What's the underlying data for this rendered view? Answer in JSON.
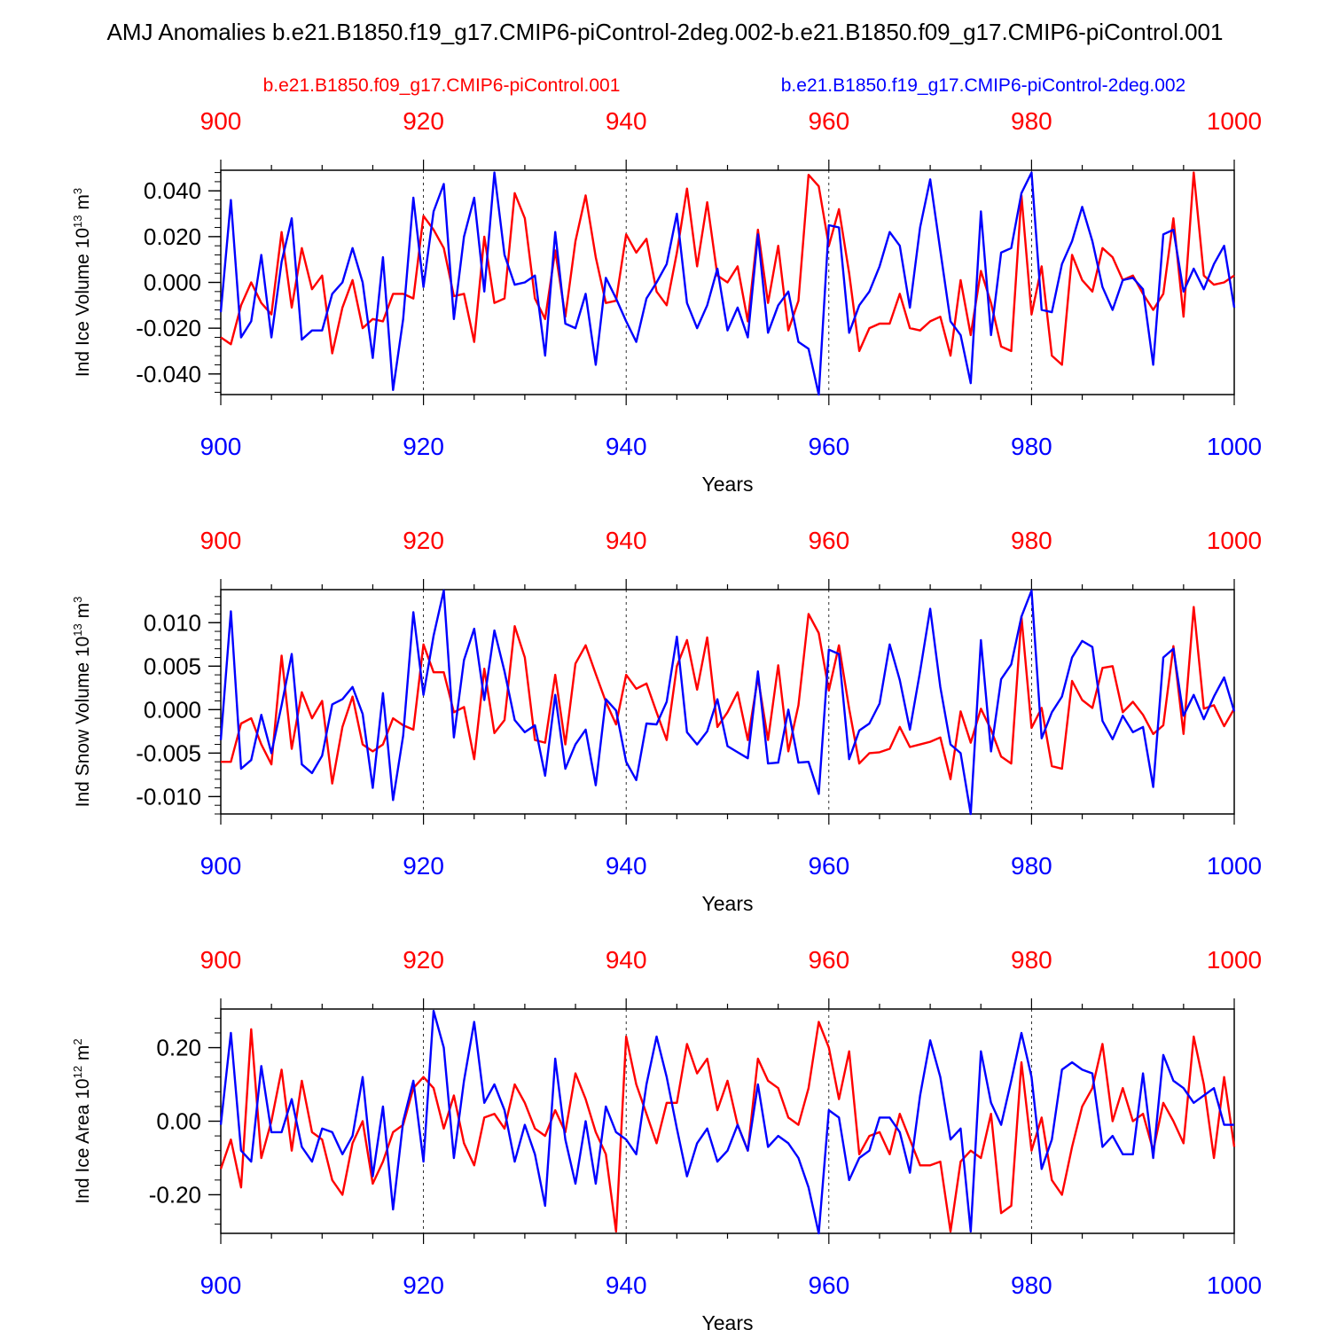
{
  "title": "AMJ Anomalies b.e21.B1850.f19_g17.CMIP6-piControl-2deg.002-b.e21.B1850.f09_g17.CMIP6-piControl.001",
  "legend": {
    "red_label": "b.e21.B1850.f09_g17.CMIP6-piControl.001",
    "blue_label": "b.e21.B1850.f19_g17.CMIP6-piControl-2deg.002"
  },
  "colors": {
    "red": "#ff0000",
    "blue": "#0000ff",
    "axis": "#000000"
  },
  "chart_data": [
    {
      "type": "line",
      "ylabel": "Ind Ice Volume 10",
      "ylabel_exp": "13",
      "ylabel_unit": " m",
      "ylabel_unit_exp": "3",
      "xlabel": "Years",
      "xlim": [
        900,
        1000
      ],
      "ylim": [
        -0.049,
        0.049
      ],
      "x_ticks": [
        "900",
        "920",
        "940",
        "960",
        "980",
        "1000"
      ],
      "y_tick_values": [
        -0.04,
        -0.02,
        0.0,
        0.02,
        0.04
      ],
      "y_tick_labels": [
        "-0.040",
        "-0.020",
        "0.000",
        "0.020",
        "0.040"
      ],
      "y_minor_step": 0.004,
      "x_start": 900,
      "series": [
        {
          "name": "b.e21.B1850.f09_g17.CMIP6-piControl.001",
          "color": "red",
          "values": [
            -0.024,
            -0.027,
            -0.01,
            0.0,
            -0.009,
            -0.014,
            0.022,
            -0.011,
            0.015,
            -0.003,
            0.003,
            -0.031,
            -0.011,
            0.001,
            -0.02,
            -0.016,
            -0.017,
            -0.005,
            -0.005,
            -0.007,
            0.029,
            0.023,
            0.015,
            -0.006,
            -0.005,
            -0.026,
            0.02,
            -0.009,
            -0.007,
            0.039,
            0.028,
            -0.007,
            -0.016,
            0.014,
            -0.015,
            0.018,
            0.038,
            0.011,
            -0.009,
            -0.008,
            0.021,
            0.013,
            0.019,
            -0.004,
            -0.01,
            0.013,
            0.041,
            0.007,
            0.035,
            0.003,
            0.0,
            0.007,
            -0.017,
            0.023,
            -0.009,
            0.016,
            -0.021,
            -0.008,
            0.047,
            0.042,
            0.016,
            0.032,
            0.004,
            -0.03,
            -0.02,
            -0.018,
            -0.018,
            -0.005,
            -0.02,
            -0.021,
            -0.017,
            -0.015,
            -0.032,
            0.001,
            -0.023,
            0.005,
            -0.009,
            -0.028,
            -0.03,
            0.038,
            -0.014,
            0.007,
            -0.032,
            -0.036,
            0.012,
            0.001,
            -0.004,
            0.015,
            0.011,
            0.001,
            0.003,
            -0.005,
            -0.012,
            -0.005,
            0.028,
            -0.015,
            0.048,
            0.003,
            -0.001,
            0.0,
            0.003
          ]
        },
        {
          "name": "b.e21.B1850.f19_g17.CMIP6-piControl-2deg.002",
          "color": "blue",
          "values": [
            -0.013,
            0.036,
            -0.024,
            -0.017,
            0.012,
            -0.024,
            0.009,
            0.028,
            -0.025,
            -0.021,
            -0.021,
            -0.005,
            0.0,
            0.015,
            0.0,
            -0.033,
            0.011,
            -0.047,
            -0.016,
            0.037,
            -0.002,
            0.031,
            0.043,
            -0.016,
            0.02,
            0.037,
            -0.004,
            0.048,
            0.012,
            -0.001,
            0.0,
            0.003,
            -0.032,
            0.022,
            -0.018,
            -0.02,
            -0.005,
            -0.036,
            0.002,
            -0.007,
            -0.017,
            -0.026,
            -0.007,
            0.0,
            0.008,
            0.03,
            -0.009,
            -0.02,
            -0.01,
            0.006,
            -0.021,
            -0.011,
            -0.024,
            0.021,
            -0.022,
            -0.01,
            -0.004,
            -0.026,
            -0.029,
            -0.049,
            0.025,
            0.024,
            -0.022,
            -0.01,
            -0.004,
            0.007,
            0.022,
            0.016,
            -0.011,
            0.024,
            0.045,
            0.014,
            -0.017,
            -0.023,
            -0.044,
            0.031,
            -0.023,
            0.013,
            0.015,
            0.039,
            0.048,
            -0.012,
            -0.013,
            0.008,
            0.018,
            0.033,
            0.018,
            -0.002,
            -0.012,
            0.001,
            0.002,
            -0.003,
            -0.036,
            0.021,
            0.023,
            -0.004,
            0.006,
            -0.003,
            0.008,
            0.016,
            -0.011
          ]
        }
      ]
    },
    {
      "type": "line",
      "ylabel": "Ind Snow Volume 10",
      "ylabel_exp": "13",
      "ylabel_unit": " m",
      "ylabel_unit_exp": "3",
      "xlabel": "Years",
      "xlim": [
        900,
        1000
      ],
      "ylim": [
        -0.012,
        0.0138
      ],
      "x_ticks": [
        "900",
        "920",
        "940",
        "960",
        "980",
        "1000"
      ],
      "y_tick_values": [
        -0.01,
        -0.005,
        0.0,
        0.005,
        0.01
      ],
      "y_tick_labels": [
        "-0.010",
        "-0.005",
        "0.000",
        "0.005",
        "0.010"
      ],
      "y_minor_step": 0.001,
      "x_start": 900,
      "series": [
        {
          "name": "b.e21.B1850.f09_g17.CMIP6-piControl.001",
          "color": "red",
          "values": [
            -0.006,
            -0.006,
            -0.0016,
            -0.001,
            -0.004,
            -0.0063,
            0.0062,
            -0.0045,
            0.002,
            -0.001,
            0.001,
            -0.0085,
            -0.002,
            0.0015,
            -0.004,
            -0.0048,
            -0.004,
            -0.001,
            -0.0018,
            -0.0023,
            0.0075,
            0.0043,
            0.0043,
            -0.0003,
            0.0003,
            -0.0057,
            0.0047,
            -0.0027,
            -0.0012,
            0.0096,
            0.006,
            -0.0035,
            -0.0038,
            0.004,
            -0.004,
            0.0053,
            0.0074,
            0.0041,
            0.0009,
            -0.0017,
            0.004,
            0.0024,
            0.003,
            -0.0003,
            -0.0035,
            0.005,
            0.008,
            0.0023,
            0.0083,
            -0.002,
            -0.0003,
            0.002,
            -0.0035,
            0.0037,
            -0.0035,
            0.0051,
            -0.0048,
            0.0005,
            0.011,
            0.0088,
            0.0022,
            0.0074,
            0.0001,
            -0.0062,
            -0.005,
            -0.0049,
            -0.0045,
            -0.002,
            -0.0043,
            -0.004,
            -0.0037,
            -0.0032,
            -0.008,
            -0.0002,
            -0.0038,
            0.0001,
            -0.0023,
            -0.0054,
            -0.0062,
            0.0107,
            -0.0021,
            0.0002,
            -0.0065,
            -0.0068,
            0.0033,
            0.0011,
            0.0002,
            0.0048,
            0.005,
            -0.0003,
            0.0009,
            -0.0006,
            -0.0028,
            -0.0018,
            0.0073,
            -0.0028,
            0.0118,
            0.0001,
            0.0005,
            -0.0019,
            0.0001
          ]
        },
        {
          "name": "b.e21.B1850.f19_g17.CMIP6-piControl-2deg.002",
          "color": "blue",
          "values": [
            -0.0035,
            0.0113,
            -0.0068,
            -0.0058,
            -0.0006,
            -0.005,
            0.0005,
            0.0064,
            -0.0063,
            -0.0073,
            -0.0053,
            0.0006,
            0.0012,
            0.0026,
            -0.0005,
            -0.009,
            0.0019,
            -0.0104,
            -0.003,
            0.0112,
            0.0017,
            0.0085,
            0.0137,
            -0.0032,
            0.0057,
            0.0093,
            0.0011,
            0.0091,
            0.0044,
            -0.0012,
            -0.0026,
            -0.0018,
            -0.0076,
            0.0017,
            -0.0068,
            -0.004,
            -0.0023,
            -0.0087,
            0.0012,
            -0.0001,
            -0.006,
            -0.0081,
            -0.0016,
            -0.0017,
            0.0009,
            0.0084,
            -0.0026,
            -0.004,
            -0.0025,
            0.0012,
            -0.0042,
            -0.0049,
            -0.0056,
            0.0044,
            -0.0062,
            -0.0061,
            0.0,
            -0.0061,
            -0.006,
            -0.0097,
            0.0069,
            0.0064,
            -0.0057,
            -0.0024,
            -0.0016,
            0.0007,
            0.0075,
            0.0034,
            -0.0023,
            0.0044,
            0.0116,
            0.0026,
            -0.004,
            -0.005,
            -0.0122,
            0.008,
            -0.0048,
            0.0035,
            0.0052,
            0.0107,
            0.0137,
            -0.0033,
            -0.0003,
            0.0015,
            0.006,
            0.0079,
            0.0072,
            -0.0013,
            -0.0034,
            -0.0007,
            -0.0026,
            -0.002,
            -0.0089,
            0.006,
            0.007,
            -0.0007,
            0.0017,
            -0.0011,
            0.0015,
            0.0037,
            -0.0002
          ]
        }
      ]
    },
    {
      "type": "line",
      "ylabel": "Ind Ice Area 10",
      "ylabel_exp": "12",
      "ylabel_unit": " m",
      "ylabel_unit_exp": "2",
      "xlabel": "Years",
      "xlim": [
        900,
        1000
      ],
      "ylim": [
        -0.305,
        0.305
      ],
      "x_ticks": [
        "900",
        "920",
        "940",
        "960",
        "980",
        "1000"
      ],
      "y_tick_values": [
        -0.2,
        0.0,
        0.2
      ],
      "y_tick_labels": [
        "-0.20",
        "0.00",
        "0.20"
      ],
      "y_minor_step": 0.04,
      "x_start": 900,
      "series": [
        {
          "name": "b.e21.B1850.f09_g17.CMIP6-piControl.001",
          "color": "red",
          "values": [
            -0.13,
            -0.05,
            -0.18,
            0.25,
            -0.1,
            0.0,
            0.14,
            -0.08,
            0.11,
            -0.03,
            -0.05,
            -0.16,
            -0.2,
            -0.06,
            0.0,
            -0.17,
            -0.11,
            -0.03,
            -0.01,
            0.09,
            0.12,
            0.09,
            -0.02,
            0.07,
            -0.06,
            -0.12,
            0.01,
            0.02,
            -0.02,
            0.1,
            0.05,
            -0.02,
            -0.04,
            0.03,
            -0.03,
            0.13,
            0.06,
            -0.03,
            -0.09,
            -0.3,
            0.23,
            0.1,
            0.02,
            -0.06,
            0.05,
            0.05,
            0.21,
            0.13,
            0.17,
            0.03,
            0.11,
            -0.01,
            -0.08,
            0.17,
            0.11,
            0.09,
            0.01,
            -0.01,
            0.09,
            0.27,
            0.2,
            0.06,
            0.19,
            -0.09,
            -0.04,
            -0.03,
            -0.09,
            0.02,
            -0.05,
            -0.12,
            -0.12,
            -0.11,
            -0.3,
            -0.11,
            -0.08,
            -0.1,
            0.02,
            -0.25,
            -0.23,
            0.16,
            -0.08,
            0.01,
            -0.16,
            -0.2,
            -0.07,
            0.04,
            0.09,
            0.21,
            0.0,
            0.09,
            0.0,
            0.02,
            -0.08,
            0.05,
            0.0,
            -0.06,
            0.23,
            0.1,
            -0.1,
            0.12,
            -0.07
          ]
        },
        {
          "name": "b.e21.B1850.f19_g17.CMIP6-piControl-2deg.002",
          "color": "blue",
          "values": [
            -0.01,
            0.24,
            -0.08,
            -0.11,
            0.15,
            -0.03,
            -0.03,
            0.06,
            -0.07,
            -0.11,
            -0.02,
            -0.03,
            -0.09,
            -0.04,
            0.12,
            -0.15,
            0.04,
            -0.24,
            0.0,
            0.11,
            -0.11,
            0.3,
            0.2,
            -0.1,
            0.11,
            0.27,
            0.05,
            0.1,
            0.03,
            -0.11,
            -0.01,
            -0.09,
            -0.23,
            0.17,
            -0.05,
            -0.17,
            0.0,
            -0.17,
            0.04,
            -0.03,
            -0.05,
            -0.09,
            0.1,
            0.23,
            0.12,
            -0.02,
            -0.15,
            -0.06,
            -0.02,
            -0.11,
            -0.08,
            -0.01,
            -0.08,
            0.1,
            -0.07,
            -0.04,
            -0.06,
            -0.1,
            -0.18,
            -0.31,
            0.03,
            0.01,
            -0.16,
            -0.1,
            -0.08,
            0.01,
            0.01,
            -0.03,
            -0.14,
            0.07,
            0.22,
            0.12,
            -0.05,
            -0.02,
            -0.3,
            0.19,
            0.05,
            -0.01,
            0.11,
            0.24,
            0.12,
            -0.13,
            -0.05,
            0.14,
            0.16,
            0.14,
            0.13,
            -0.07,
            -0.04,
            -0.09,
            -0.09,
            0.13,
            -0.1,
            0.18,
            0.11,
            0.09,
            0.05,
            0.07,
            0.09,
            -0.01,
            -0.01
          ]
        }
      ]
    }
  ]
}
